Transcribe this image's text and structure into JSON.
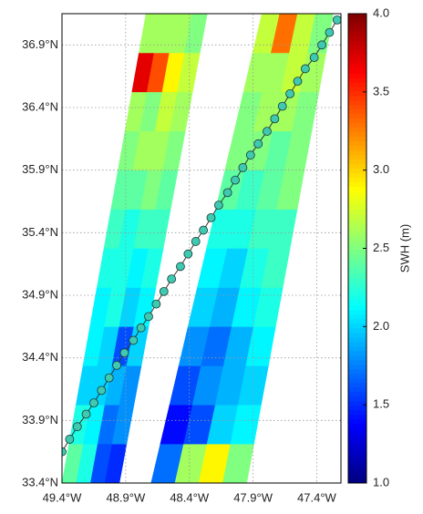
{
  "chart_data": {
    "type": "scatter",
    "xlim": [
      -49.4,
      -47.21
    ],
    "ylim": [
      33.4,
      37.15
    ],
    "xticks": [
      {
        "value": -49.4,
        "label": "49.4°W"
      },
      {
        "value": -48.9,
        "label": "48.9°W"
      },
      {
        "value": -48.4,
        "label": "48.4°W"
      },
      {
        "value": -47.9,
        "label": "47.9°W"
      },
      {
        "value": -47.4,
        "label": "47.4°W"
      }
    ],
    "yticks": [
      {
        "value": 33.4,
        "label": "33.4°N"
      },
      {
        "value": 33.9,
        "label": "33.9°N"
      },
      {
        "value": 34.4,
        "label": "34.4°N"
      },
      {
        "value": 34.9,
        "label": "34.9°N"
      },
      {
        "value": 35.4,
        "label": "35.4°N"
      },
      {
        "value": 35.9,
        "label": "35.9°N"
      },
      {
        "value": 36.4,
        "label": "36.4°N"
      },
      {
        "value": 36.9,
        "label": "36.9°N"
      }
    ],
    "grid": true,
    "colorbar_label": "SWH (m)",
    "clim": [
      1,
      4
    ],
    "cticks": [
      {
        "value": 1,
        "label": "1.0"
      },
      {
        "value": 1.5,
        "label": "1.5"
      },
      {
        "value": 2,
        "label": "2.0"
      },
      {
        "value": 2.5,
        "label": "2.5"
      },
      {
        "value": 3,
        "label": "3.0"
      },
      {
        "value": 3.5,
        "label": "3.5"
      },
      {
        "value": 4,
        "label": "4.0"
      }
    ],
    "swaths": [
      {
        "bottom_lon": [
          -49.4,
          -48.95
        ],
        "top_lon": [
          -48.74,
          -48.26
        ],
        "values": [
          [
            2.4,
            2.2,
            1.6,
            1.5
          ],
          [
            2.2,
            2.1,
            1.7,
            1.8
          ],
          [
            2.0,
            2.0,
            1.9,
            1.8
          ],
          [
            2.1,
            2.0,
            1.6,
            2.0
          ],
          [
            2.1,
            2.2,
            2.0,
            2.1
          ],
          [
            2.2,
            2.2,
            2.1,
            2.2
          ],
          [
            2.3,
            2.2,
            2.3,
            2.3
          ],
          [
            2.4,
            2.4,
            2.5,
            2.4
          ],
          [
            2.5,
            2.6,
            2.6,
            2.5
          ],
          [
            2.6,
            2.5,
            2.7,
            2.6
          ],
          [
            3.7,
            3.4,
            2.9,
            2.7
          ],
          [
            2.6,
            2.6,
            2.6,
            2.5
          ]
        ]
      },
      {
        "bottom_lon": [
          -48.7,
          -47.95
        ],
        "top_lon": [
          -47.83,
          -47.27
        ],
        "values": [
          [
            1.7,
            2.6,
            2.9,
            2.5
          ],
          [
            1.4,
            1.6,
            2.0,
            2.1
          ],
          [
            1.6,
            1.8,
            1.9,
            2.0
          ],
          [
            1.8,
            1.7,
            1.9,
            2.1
          ],
          [
            2.0,
            1.9,
            2.1,
            2.2
          ],
          [
            2.1,
            2.0,
            2.2,
            2.3
          ],
          [
            2.2,
            2.2,
            2.3,
            2.3
          ],
          [
            2.4,
            2.3,
            2.4,
            2.5
          ],
          [
            2.5,
            2.5,
            2.4,
            2.5
          ],
          [
            2.5,
            2.6,
            2.6,
            2.5
          ],
          [
            2.6,
            2.6,
            2.7,
            2.6
          ],
          [
            2.7,
            3.3,
            2.7,
            2.5
          ]
        ]
      }
    ],
    "series": [
      {
        "color": "#3fc9b0",
        "x": [
          -49.4,
          -49.34,
          -49.28,
          -49.21,
          -49.15,
          -49.09,
          -49.03,
          -48.97,
          -48.91,
          -48.84,
          -48.78,
          -48.72,
          -48.66,
          -48.6,
          -48.54,
          -48.47,
          -48.41,
          -48.35,
          -48.29,
          -48.23,
          -48.17,
          -48.1,
          -48.04,
          -47.98,
          -47.92,
          -47.86,
          -47.79,
          -47.73,
          -47.67,
          -47.61,
          -47.55,
          -47.49,
          -47.42,
          -47.36,
          -47.3,
          -47.24
        ],
        "values": [
          33.65,
          33.75,
          33.85,
          33.95,
          34.04,
          34.14,
          34.24,
          34.34,
          34.44,
          34.54,
          34.64,
          34.73,
          34.83,
          34.93,
          35.03,
          35.13,
          35.23,
          35.33,
          35.42,
          35.52,
          35.62,
          35.72,
          35.82,
          35.92,
          36.02,
          36.11,
          36.21,
          36.31,
          36.41,
          36.51,
          36.61,
          36.71,
          36.8,
          36.9,
          37.0,
          37.1
        ]
      }
    ]
  }
}
